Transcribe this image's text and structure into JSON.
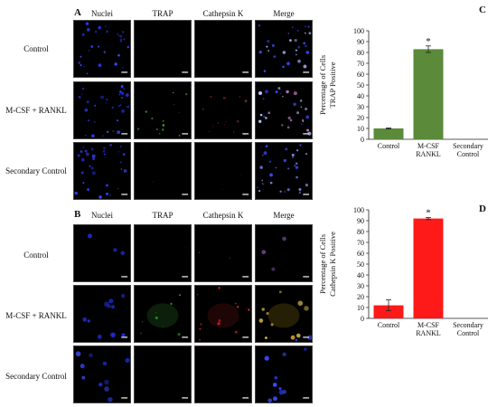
{
  "figure": {
    "panel_a": {
      "letter": "A",
      "columns": [
        "Nuclei",
        "TRAP",
        "Cathepsin K",
        "Merge"
      ],
      "rows": [
        "Control",
        "M-CSF + RANKL",
        "Secondary Control"
      ]
    },
    "panel_b": {
      "letter": "B",
      "columns": [
        "Nuclei",
        "TRAP",
        "Cathepsin K",
        "Merge"
      ],
      "rows": [
        "Control",
        "M-CSF + RANKL",
        "Secondary Control"
      ]
    }
  },
  "chart_data": [
    {
      "letter": "C",
      "type": "bar",
      "categories": [
        [
          "Control"
        ],
        [
          "M-CSF",
          "RANKL"
        ],
        [
          "Secondary",
          "Control"
        ]
      ],
      "values": [
        10,
        83,
        0
      ],
      "errors": [
        0.5,
        3,
        0
      ],
      "significance": [
        "",
        "*",
        ""
      ],
      "ylabel": [
        "Percentage of Cells",
        "TRAP Positive"
      ],
      "ylim": [
        0,
        100
      ],
      "yticks": [
        0,
        10,
        20,
        30,
        40,
        50,
        60,
        70,
        80,
        90,
        100
      ],
      "color": "#5a8a3a"
    },
    {
      "letter": "D",
      "type": "bar",
      "categories": [
        [
          "Control"
        ],
        [
          "M-CSF",
          "RANKL"
        ],
        [
          "Secondary",
          "Control"
        ]
      ],
      "values": [
        12,
        92,
        0
      ],
      "errors": [
        5,
        1,
        0
      ],
      "significance": [
        "",
        "*",
        ""
      ],
      "ylabel": [
        "Percentage of Cells",
        "Cathepsin K Positive"
      ],
      "ylim": [
        0,
        100
      ],
      "yticks": [
        0,
        10,
        20,
        30,
        40,
        50,
        60,
        70,
        80,
        90,
        100
      ],
      "color": "#ff1a1a"
    }
  ]
}
